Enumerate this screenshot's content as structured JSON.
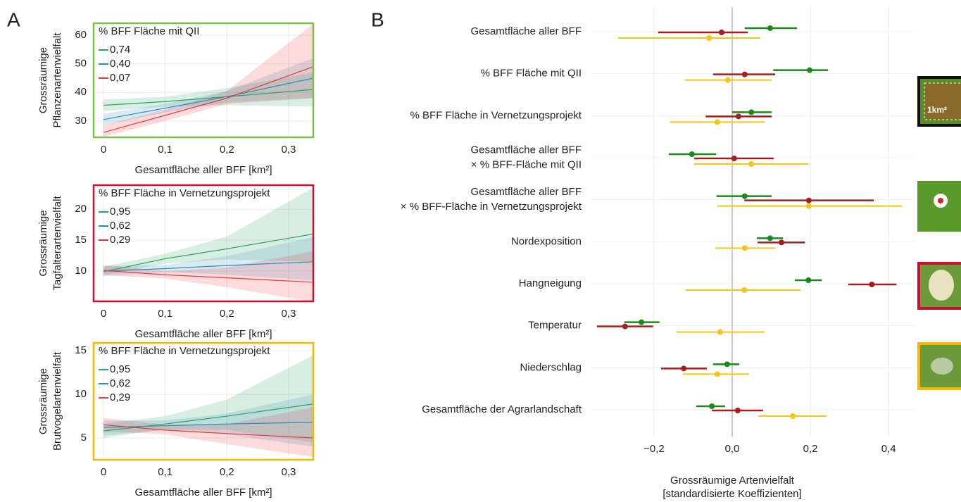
{
  "chart_data": [
    {
      "type": "line",
      "panel_label": "A",
      "legend_title": "% BFF Fläche mit QII",
      "legend": "top-left",
      "frame_color": "#7ac143",
      "xlabel": "Gesamtfläche aller BFF [km²]",
      "ylabel": [
        "Grossräumige",
        "Pflanzenartenvielfalt"
      ],
      "x": [
        0,
        0.1,
        0.2,
        0.34
      ],
      "xlim": [
        -0.016,
        0.34
      ],
      "ylim": [
        24.3,
        64.2
      ],
      "xticks": [
        0,
        {
          "value": 0.1,
          "label": "0,1"
        },
        {
          "value": 0.2,
          "label": "0,2"
        },
        {
          "value": 0.3,
          "label": "0,3"
        }
      ],
      "yticks": [
        30,
        40,
        50,
        60
      ],
      "grid": true,
      "series": [
        {
          "name": "0,74",
          "color": "#2ca25f",
          "values": [
            35.5,
            36.8,
            38.5,
            41
          ],
          "lower": [
            33.5,
            35,
            35.5,
            35
          ],
          "upper": [
            37.5,
            38.5,
            41.5,
            47
          ]
        },
        {
          "name": "0,40",
          "color": "#2b8cbe",
          "values": [
            30.5,
            34.5,
            38.5,
            45
          ],
          "lower": [
            28.5,
            33,
            36.5,
            38
          ],
          "upper": [
            32.5,
            36,
            40.5,
            52
          ]
        },
        {
          "name": "0,07",
          "color": "#e8383d",
          "values": [
            26,
            32,
            38,
            49
          ],
          "lower": [
            24.5,
            30,
            36,
            38
          ],
          "upper": [
            28.5,
            34,
            40.5,
            64
          ]
        }
      ]
    },
    {
      "type": "line",
      "legend_title": "% BFF Fläche in Vernetzungsprojekt",
      "legend": "top-left",
      "frame_color": "#c8102e",
      "xlabel": "Gesamtfläche aller BFF [km²]",
      "ylabel": [
        "Grossräumige",
        "Tagfalterartenvielfalt"
      ],
      "x": [
        0,
        0.1,
        0.2,
        0.34
      ],
      "xlim": [
        -0.016,
        0.34
      ],
      "ylim": [
        5.1,
        23.9
      ],
      "xticks": [
        0,
        {
          "value": 0.1,
          "label": "0,1"
        },
        {
          "value": 0.2,
          "label": "0,2"
        },
        {
          "value": 0.3,
          "label": "0,3"
        }
      ],
      "yticks": [
        10,
        15,
        20
      ],
      "grid": true,
      "series": [
        {
          "name": "0,95",
          "color": "#2ca25f",
          "values": [
            9.9,
            12,
            13.6,
            16
          ],
          "lower": [
            9.4,
            11.2,
            11.9,
            11.5
          ],
          "upper": [
            10.7,
            12.8,
            15.6,
            23.5
          ]
        },
        {
          "name": "0,62",
          "color": "#2b8cbe",
          "values": [
            10,
            10.4,
            10.9,
            11.5
          ],
          "lower": [
            9.2,
            9.8,
            9.4,
            8.5
          ],
          "upper": [
            10.8,
            11,
            12.4,
            15.5
          ]
        },
        {
          "name": "0,29",
          "color": "#e8383d",
          "values": [
            10.1,
            9.4,
            8.9,
            8.2
          ],
          "lower": [
            9.3,
            8.8,
            7.4,
            5
          ],
          "upper": [
            11,
            10,
            10.6,
            13.2
          ]
        }
      ]
    },
    {
      "type": "line",
      "legend_title": "% BFF Fläche in Vernetzungsprojekt",
      "legend": "top-left",
      "frame_color": "#f5b800",
      "xlabel": "Gesamtfläche aller BFF [km²]",
      "ylabel": [
        "Grossräumige",
        "Brutvogelartenvielfalt"
      ],
      "x": [
        0,
        0.1,
        0.2,
        0.34
      ],
      "xlim": [
        -0.016,
        0.34
      ],
      "ylim": [
        2.5,
        15.9
      ],
      "xticks": [
        0,
        {
          "value": 0.1,
          "label": "0,1"
        },
        {
          "value": 0.2,
          "label": "0,2"
        },
        {
          "value": 0.3,
          "label": "0,3"
        }
      ],
      "yticks": [
        5,
        10,
        15
      ],
      "grid": true,
      "series": [
        {
          "name": "0,95",
          "color": "#2ca25f",
          "values": [
            5.8,
            6.6,
            7.5,
            8.9
          ],
          "lower": [
            5,
            6,
            5.9,
            4.5
          ],
          "upper": [
            6.6,
            7.5,
            9.4,
            14.5
          ]
        },
        {
          "name": "0,62",
          "color": "#2b8cbe",
          "values": [
            6.2,
            6.4,
            6.6,
            6.8
          ],
          "lower": [
            5.3,
            5.9,
            5.4,
            4
          ],
          "upper": [
            7,
            7,
            7.8,
            10
          ]
        },
        {
          "name": "0,29",
          "color": "#e8383d",
          "values": [
            6.5,
            5.9,
            5.5,
            5
          ],
          "lower": [
            5.8,
            5.4,
            4.3,
            2.8
          ],
          "upper": [
            7.3,
            6.5,
            6.6,
            8.5
          ]
        }
      ]
    },
    {
      "type": "forest",
      "panel_label": "B",
      "icon_text": "1km²",
      "xlabel": [
        "Grossräumige Artenvielfalt",
        "[standardisierte Koeffizienten]"
      ],
      "categories": [
        [
          "Gesamtfläche aller BFF"
        ],
        [
          "% BFF Fläche mit QII"
        ],
        [
          "% BFF Fläche in Vernetzungsprojekt"
        ],
        [
          "Gesamtfläche aller BFF",
          "× % BFF-Fläche mit QII"
        ],
        [
          "Gesamtfläche aller BFF",
          "× % BFF-Fläche in Vernetzungsprojekt"
        ],
        [
          "Nordexposition"
        ],
        [
          "Hangneigung"
        ],
        [
          "Temperatur"
        ],
        [
          "Niederschlag"
        ],
        [
          "Gesamtfläche der Agrarlandschaft"
        ]
      ],
      "xlim": [
        -0.36,
        0.468
      ],
      "xticks": [
        {
          "value": -0.2,
          "label": "−0,2"
        },
        {
          "value": 0,
          "label": "0,0"
        },
        {
          "value": 0.2,
          "label": "0,2"
        },
        {
          "value": 0.4,
          "label": "0,4"
        }
      ],
      "grid": true,
      "series": [
        {
          "color": "#1a8a1a",
          "values": [
            0.097,
            0.198,
            0.049,
            -0.103,
            0.032,
            0.097,
            0.195,
            -0.232,
            -0.013,
            -0.052
          ],
          "lower": [
            0.032,
            0.105,
            0,
            -0.162,
            -0.04,
            0.063,
            0.16,
            -0.276,
            -0.049,
            -0.092
          ],
          "upper": [
            0.166,
            0.245,
            0.101,
            -0.041,
            0.101,
            0.13,
            0.229,
            -0.186,
            0.018,
            -0.018
          ]
        },
        {
          "color": "#a31f1f",
          "values": [
            -0.027,
            0.032,
            0.016,
            0.005,
            0.196,
            0.126,
            0.357,
            -0.274,
            -0.124,
            0.014
          ],
          "lower": [
            -0.189,
            -0.049,
            -0.068,
            -0.097,
            0.031,
            0.065,
            0.297,
            -0.346,
            -0.182,
            -0.052
          ],
          "upper": [
            0.04,
            0.11,
            0.101,
            0.106,
            0.362,
            0.186,
            0.42,
            -0.202,
            -0.065,
            0.079
          ]
        },
        {
          "color": "#f5c518",
          "values": [
            -0.059,
            -0.011,
            -0.038,
            0.049,
            0.196,
            0.032,
            0.031,
            -0.031,
            -0.038,
            0.155
          ],
          "lower": [
            -0.292,
            -0.121,
            -0.159,
            -0.097,
            -0.038,
            -0.043,
            -0.119,
            -0.142,
            -0.126,
            0.067
          ],
          "upper": [
            0.072,
            0.101,
            0.083,
            0.195,
            0.434,
            0.11,
            0.175,
            0.083,
            0.043,
            0.241
          ]
        }
      ]
    }
  ]
}
